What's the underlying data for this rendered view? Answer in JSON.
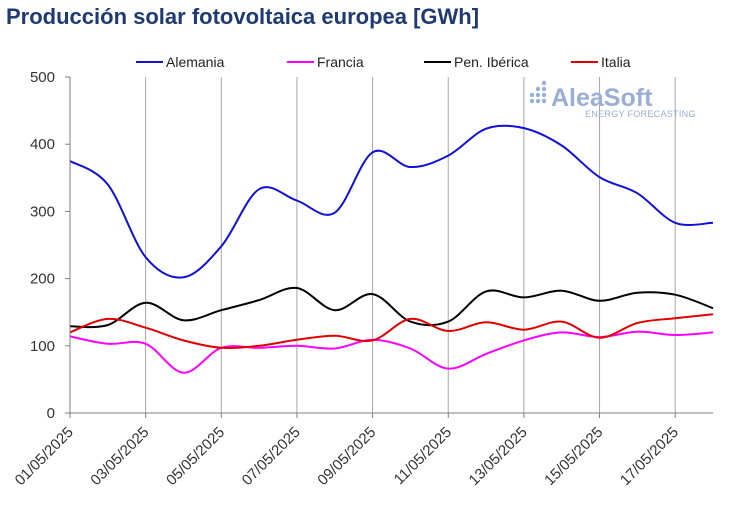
{
  "chart_data": {
    "type": "line",
    "title": "Producción solar fotovoltaica europea [GWh]",
    "xlabel": "",
    "ylabel": "",
    "ylim": [
      0,
      500
    ],
    "yticks": [
      0,
      100,
      200,
      300,
      400,
      500
    ],
    "x": [
      "01/05/2025",
      "02/05/2025",
      "03/05/2025",
      "04/05/2025",
      "05/05/2025",
      "06/05/2025",
      "07/05/2025",
      "08/05/2025",
      "09/05/2025",
      "10/05/2025",
      "11/05/2025",
      "12/05/2025",
      "13/05/2025",
      "14/05/2025",
      "15/05/2025",
      "16/05/2025",
      "17/05/2025",
      "18/05/2025"
    ],
    "xtick_labels": [
      "01/05/2025",
      "03/05/2025",
      "05/05/2025",
      "07/05/2025",
      "09/05/2025",
      "11/05/2025",
      "13/05/2025",
      "15/05/2025",
      "17/05/2025"
    ],
    "series": [
      {
        "name": "Alemania",
        "color": "#1010d8",
        "values": [
          375,
          340,
          232,
          202,
          248,
          333,
          316,
          298,
          388,
          366,
          383,
          423,
          424,
          398,
          351,
          327,
          283,
          283
        ]
      },
      {
        "name": "Francia",
        "color": "#ff00ff",
        "values": [
          114,
          103,
          103,
          60,
          97,
          97,
          100,
          96,
          109,
          96,
          66,
          88,
          108,
          120,
          113,
          121,
          116,
          120
        ]
      },
      {
        "name": "Pen. Ibérica",
        "color": "#000000",
        "values": [
          129,
          131,
          164,
          138,
          153,
          168,
          186,
          153,
          177,
          136,
          136,
          181,
          172,
          182,
          167,
          179,
          176,
          156
        ]
      },
      {
        "name": "Italia",
        "color": "#e00000",
        "values": [
          120,
          140,
          127,
          108,
          97,
          100,
          109,
          115,
          108,
          140,
          122,
          135,
          124,
          136,
          112,
          134,
          141,
          147
        ]
      }
    ],
    "grid": "vertical",
    "legend_position": "top"
  },
  "watermark": {
    "name": "AleaSoft",
    "tagline": "ENERGY FORECASTING",
    "color": "#9aaed6"
  }
}
